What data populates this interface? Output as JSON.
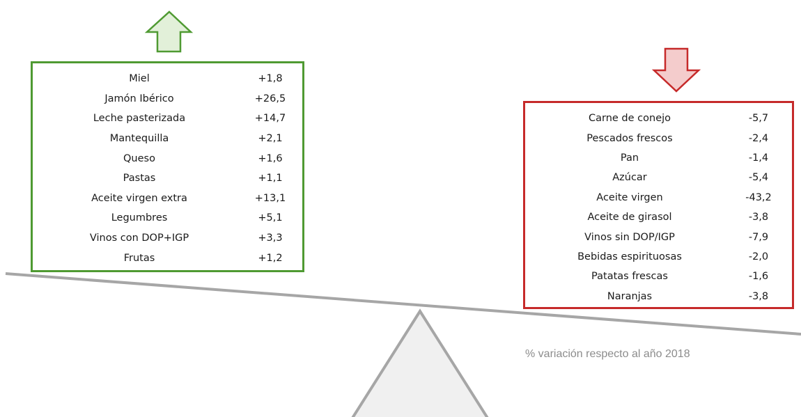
{
  "colors": {
    "positive": "#4f9a32",
    "positive_fill": "#e2f0d9",
    "negative": "#c62a2a",
    "negative_fill": "#f4cccc",
    "beam": "#a6a6a6",
    "fulcrum_fill": "#f0f0f0",
    "caption": "#8c8c8c"
  },
  "icons": {
    "up": "arrow-up-icon",
    "down": "arrow-down-icon"
  },
  "increases": [
    {
      "name": "Miel",
      "value": "+1,8"
    },
    {
      "name": "Jamón Ibérico",
      "value": "+26,5"
    },
    {
      "name": "Leche pasterizada",
      "value": "+14,7"
    },
    {
      "name": "Mantequilla",
      "value": "+2,1"
    },
    {
      "name": "Queso",
      "value": "+1,6"
    },
    {
      "name": "Pastas",
      "value": "+1,1"
    },
    {
      "name": "Aceite virgen extra",
      "value": "+13,1"
    },
    {
      "name": "Legumbres",
      "value": "+5,1"
    },
    {
      "name": "Vinos con DOP+IGP",
      "value": "+3,3"
    },
    {
      "name": "Frutas",
      "value": "+1,2"
    }
  ],
  "decreases": [
    {
      "name": "Carne de conejo",
      "value": "-5,7"
    },
    {
      "name": "Pescados frescos",
      "value": "-2,4"
    },
    {
      "name": "Pan",
      "value": "-1,4"
    },
    {
      "name": "Azúcar",
      "value": "-5,4"
    },
    {
      "name": "Aceite virgen",
      "value": "-43,2"
    },
    {
      "name": "Aceite de girasol",
      "value": "-3,8"
    },
    {
      "name": "Vinos sin DOP/IGP",
      "value": "-7,9"
    },
    {
      "name": "Bebidas espirituosas",
      "value": "-2,0"
    },
    {
      "name": "Patatas frescas",
      "value": "-1,6"
    },
    {
      "name": "Naranjas",
      "value": "-3,8"
    }
  ],
  "caption": "% variación respecto al año 2018"
}
